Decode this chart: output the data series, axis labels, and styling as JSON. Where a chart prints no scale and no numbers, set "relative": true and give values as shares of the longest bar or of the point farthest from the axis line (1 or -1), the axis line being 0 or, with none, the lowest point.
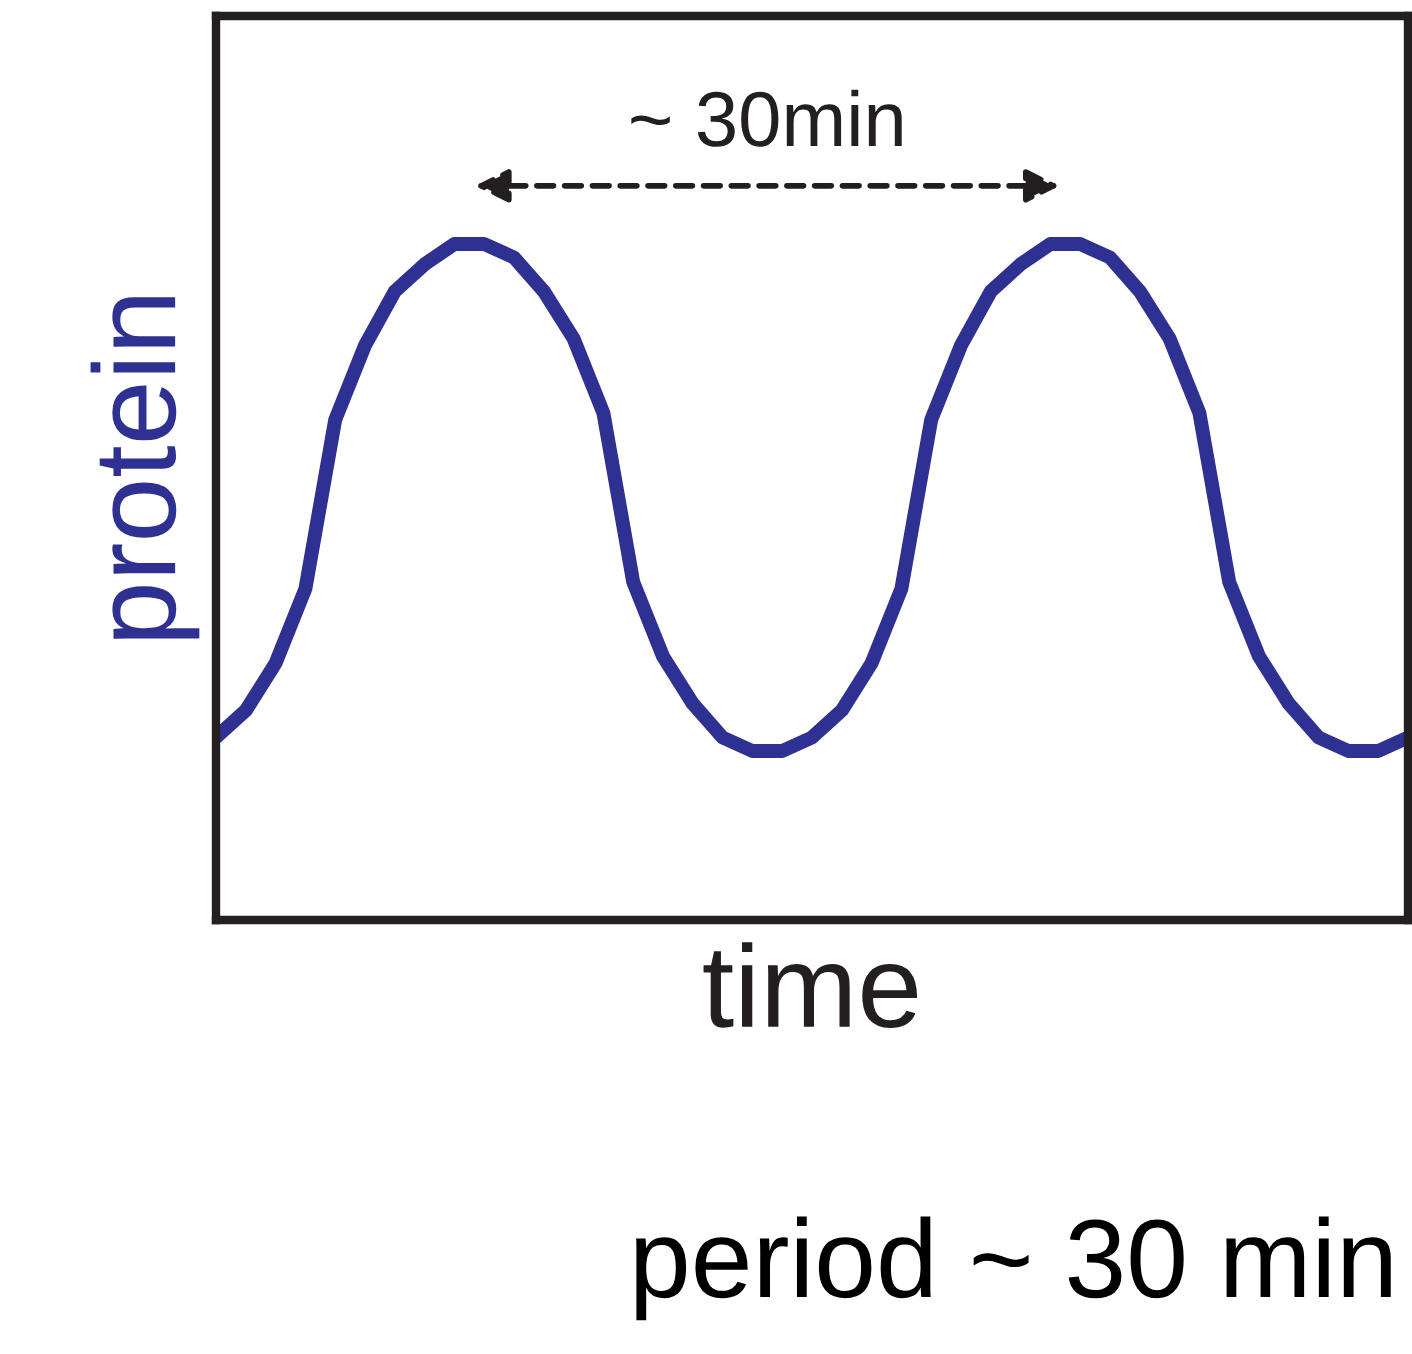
{
  "chart_data": {
    "type": "line",
    "relative": true,
    "xlabel": "time",
    "ylabel": "protein",
    "tick_labels": false,
    "categories": [
      null,
      null,
      null,
      null,
      null,
      null,
      null,
      null,
      null,
      null,
      null,
      null,
      null,
      null,
      null,
      null,
      null,
      null,
      null,
      null,
      null,
      null,
      null,
      null,
      null,
      null,
      null,
      null,
      null,
      null,
      null,
      null,
      null,
      null,
      null,
      null,
      null,
      null,
      null,
      null,
      null
    ],
    "series": [
      {
        "color": "#2e3192",
        "values": [
          0.27,
          0.31,
          0.38,
          0.49,
          0.74,
          0.85,
          0.93,
          0.97,
          1.0,
          1.0,
          0.98,
          0.93,
          0.86,
          0.75,
          0.5,
          0.39,
          0.32,
          0.27,
          0.25,
          0.25,
          0.27,
          0.31,
          0.38,
          0.49,
          0.74,
          0.85,
          0.93,
          0.97,
          1.0,
          1.0,
          0.98,
          0.93,
          0.86,
          0.75,
          0.5,
          0.39,
          0.32,
          0.27,
          0.25,
          0.25,
          0.27
        ]
      }
    ],
    "annotations": [
      "~ 30min",
      "period ~ 30 min"
    ]
  }
}
